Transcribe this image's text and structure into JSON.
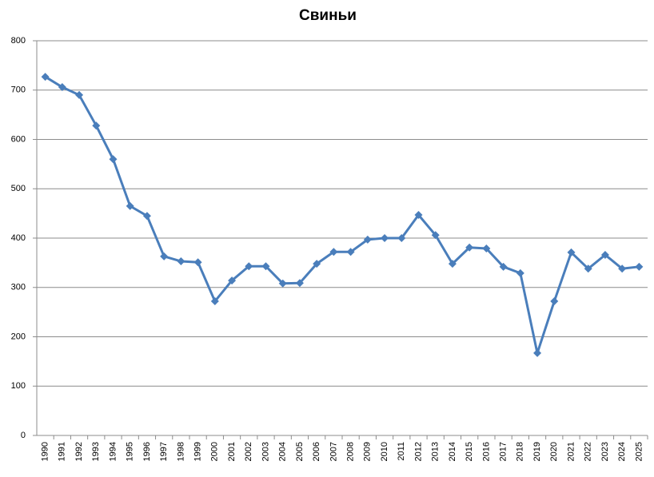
{
  "chart_data": {
    "type": "line",
    "title": "Свиньи",
    "categories": [
      "1990",
      "1991",
      "1992",
      "1993",
      "1994",
      "1995",
      "1996",
      "1997",
      "1998",
      "1999",
      "2000",
      "2001",
      "2002",
      "2003",
      "2004",
      "2005",
      "2006",
      "2007",
      "2008",
      "2009",
      "2010",
      "2011",
      "2012",
      "2013",
      "2014",
      "2015",
      "2016",
      "2017",
      "2018",
      "2019",
      "2020",
      "2021",
      "2022",
      "2023",
      "2024",
      "2025"
    ],
    "values": [
      727,
      706,
      690,
      628,
      560,
      465,
      445,
      363,
      353,
      351,
      272,
      314,
      343,
      343,
      308,
      309,
      348,
      372,
      372,
      397,
      400,
      400,
      447,
      406,
      348,
      381,
      379,
      342,
      329,
      167,
      272,
      371,
      338,
      366,
      338,
      342
    ],
    "color": "#4a7ebb",
    "ylim": [
      0,
      800
    ],
    "yticks": [
      0,
      100,
      200,
      300,
      400,
      500,
      600,
      700,
      800
    ],
    "grid": true
  }
}
